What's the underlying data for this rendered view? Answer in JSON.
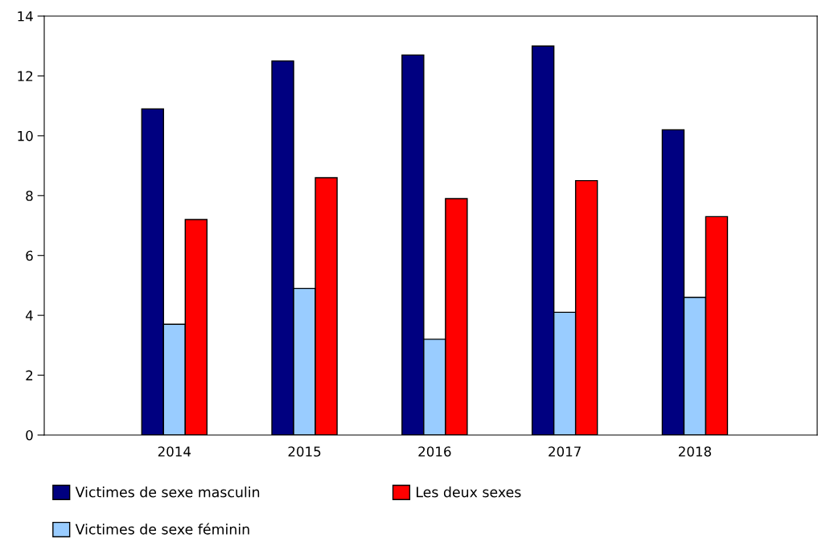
{
  "chart_data": {
    "type": "bar",
    "categories": [
      "2014",
      "2015",
      "2016",
      "2017",
      "2018"
    ],
    "series": [
      {
        "name": "Victimes de sexe masculin",
        "color": "#000080",
        "values": [
          10.9,
          12.5,
          12.7,
          13.0,
          10.2
        ]
      },
      {
        "name": "Victimes de sexe féminin",
        "color": "#99ccff",
        "values": [
          3.7,
          4.9,
          3.2,
          4.1,
          4.6
        ]
      },
      {
        "name": "Les deux sexes",
        "color": "#ff0000",
        "values": [
          7.2,
          8.6,
          7.9,
          8.5,
          7.3
        ]
      }
    ],
    "ylim": [
      0,
      14
    ],
    "yticks": [
      0,
      2,
      4,
      6,
      8,
      10,
      12,
      14
    ],
    "grid": false,
    "legend": "bottom"
  }
}
